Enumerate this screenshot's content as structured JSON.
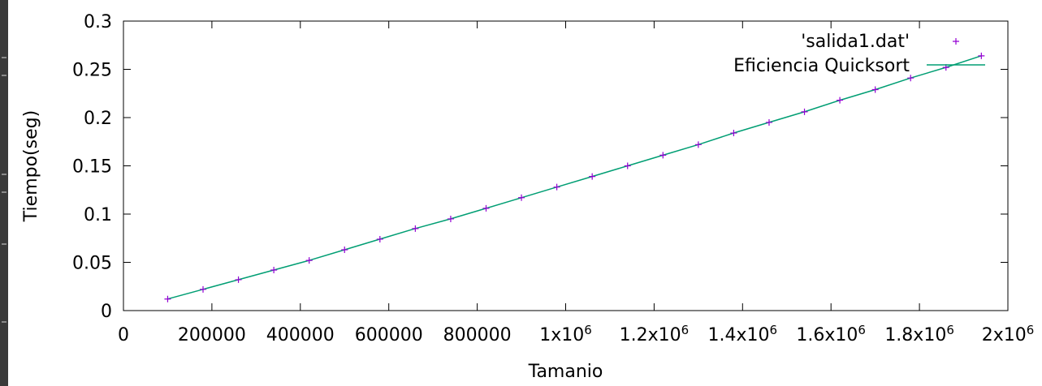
{
  "chart_data": {
    "type": "scatter",
    "title": "",
    "xlabel": "Tamanio",
    "ylabel": "Tiempo(seg)",
    "xlim": [
      0,
      2000000
    ],
    "ylim": [
      0,
      0.3
    ],
    "grid": false,
    "legend_position": "top-right",
    "x_tick_labels": [
      {
        "value": 0,
        "base": "0"
      },
      {
        "value": 200000,
        "base": "200000"
      },
      {
        "value": 400000,
        "base": "400000"
      },
      {
        "value": 600000,
        "base": "600000"
      },
      {
        "value": 800000,
        "base": "800000"
      },
      {
        "value": 1000000,
        "base": "1x10",
        "sup": "6"
      },
      {
        "value": 1200000,
        "base": "1.2x10",
        "sup": "6"
      },
      {
        "value": 1400000,
        "base": "1.4x10",
        "sup": "6"
      },
      {
        "value": 1600000,
        "base": "1.6x10",
        "sup": "6"
      },
      {
        "value": 1800000,
        "base": "1.8x10",
        "sup": "6"
      },
      {
        "value": 2000000,
        "base": "2x10",
        "sup": "6"
      }
    ],
    "y_tick_labels": [
      {
        "value": 0,
        "label": "0"
      },
      {
        "value": 0.05,
        "label": "0.05"
      },
      {
        "value": 0.1,
        "label": "0.1"
      },
      {
        "value": 0.15,
        "label": "0.15"
      },
      {
        "value": 0.2,
        "label": "0.2"
      },
      {
        "value": 0.25,
        "label": "0.25"
      },
      {
        "value": 0.3,
        "label": "0.3"
      }
    ],
    "series": [
      {
        "name": "'salida1.dat'",
        "kind": "points",
        "color": "#9400d3",
        "marker": "plus",
        "x": [
          100000,
          180000,
          260000,
          340000,
          420000,
          500000,
          580000,
          660000,
          740000,
          820000,
          900000,
          980000,
          1060000,
          1140000,
          1220000,
          1300000,
          1380000,
          1460000,
          1540000,
          1620000,
          1700000,
          1780000,
          1860000,
          1940000
        ],
        "y": [
          0.012,
          0.022,
          0.032,
          0.042,
          0.052,
          0.063,
          0.074,
          0.085,
          0.095,
          0.106,
          0.117,
          0.128,
          0.139,
          0.15,
          0.161,
          0.172,
          0.184,
          0.195,
          0.206,
          0.218,
          0.229,
          0.241,
          0.252,
          0.264
        ]
      },
      {
        "name": "Eficiencia Quicksort",
        "kind": "line",
        "color": "#009e73",
        "x": [
          100000,
          180000,
          260000,
          340000,
          420000,
          500000,
          580000,
          660000,
          740000,
          820000,
          900000,
          980000,
          1060000,
          1140000,
          1220000,
          1300000,
          1380000,
          1460000,
          1540000,
          1620000,
          1700000,
          1780000,
          1860000,
          1940000
        ],
        "y": [
          0.012,
          0.022,
          0.032,
          0.042,
          0.052,
          0.063,
          0.074,
          0.085,
          0.095,
          0.106,
          0.117,
          0.128,
          0.139,
          0.15,
          0.161,
          0.172,
          0.184,
          0.195,
          0.206,
          0.218,
          0.229,
          0.241,
          0.252,
          0.264
        ]
      }
    ]
  }
}
